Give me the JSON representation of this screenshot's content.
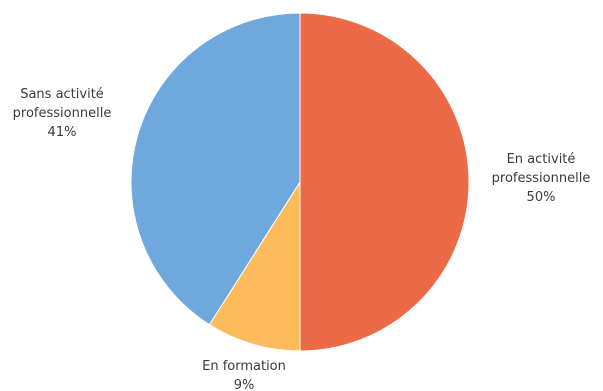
{
  "chart_data": {
    "type": "pie",
    "start_angle_deg": 0,
    "direction": "clockwise",
    "slices": [
      {
        "label_lines": [
          "En activité",
          "professionnelle"
        ],
        "percent_text": "50%",
        "value": 50,
        "color": "#ec6a45"
      },
      {
        "label_lines": [
          "En formation"
        ],
        "percent_text": "9%",
        "value": 9,
        "color": "#fdbb5c"
      },
      {
        "label_lines": [
          "Sans activité",
          "professionnelle"
        ],
        "percent_text": "41%",
        "value": 41,
        "color": "#6fa8dc"
      }
    ]
  }
}
